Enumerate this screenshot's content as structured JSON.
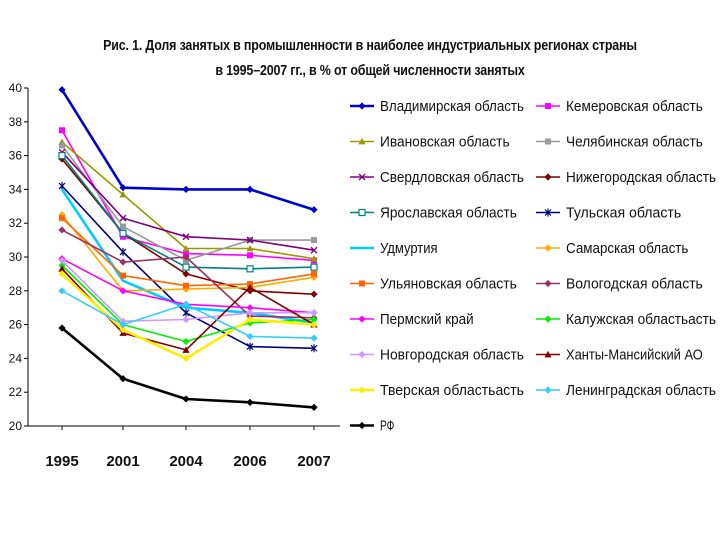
{
  "title_line1": "Рис. 1. Доля занятых в промышленности в наиболее индустриальных регионах страны",
  "title_line2": "в 1995–2007 гг., в % от общей численности занятых",
  "chart_data": {
    "type": "line",
    "title": "Рис. 1. Доля занятых в промышленности в наиболее индустриальных регионах страны в 1995–2007 гг., в % от общей численности занятых",
    "xlabel": "",
    "ylabel": "",
    "ylim": [
      20,
      40
    ],
    "yticks": [
      "20",
      "22",
      "24",
      "26",
      "28",
      "30",
      "32",
      "34",
      "36",
      "38",
      "40"
    ],
    "categories": [
      "1995",
      "2001",
      "2004",
      "2006",
      "2007"
    ],
    "grid": false,
    "legend_position": "right",
    "series": [
      {
        "name": "Владимирская область",
        "color": "#0000cc",
        "marker": "diamond",
        "values": [
          39.9,
          34.1,
          34.0,
          34.0,
          32.8
        ]
      },
      {
        "name": "Кемеровская область",
        "color": "#ff00ff",
        "marker": "square",
        "values": [
          37.5,
          31.2,
          30.2,
          30.1,
          29.8
        ]
      },
      {
        "name": "Ивановская область",
        "color": "#999900",
        "marker": "triangle",
        "values": [
          36.8,
          33.7,
          30.5,
          30.5,
          29.9
        ]
      },
      {
        "name": "Челябинская область",
        "color": "#999999",
        "marker": "square",
        "values": [
          36.6,
          31.8,
          29.8,
          31.0,
          31.0
        ]
      },
      {
        "name": "Свердловская область",
        "color": "#800080",
        "marker": "x",
        "values": [
          36.2,
          32.3,
          31.2,
          31.0,
          30.4
        ]
      },
      {
        "name": "Нижегородская область",
        "color": "#800000",
        "marker": "diamond",
        "values": [
          35.8,
          31.4,
          29.0,
          28.0,
          27.8
        ]
      },
      {
        "name": "Ярославская область",
        "color": "#008080",
        "marker": "square-open",
        "values": [
          36.0,
          31.4,
          29.4,
          29.3,
          29.4
        ]
      },
      {
        "name": "Тульская область",
        "color": "#000080",
        "marker": "star",
        "values": [
          34.2,
          30.3,
          26.7,
          24.7,
          24.6
        ]
      },
      {
        "name": "Удмуртия",
        "color": "#00ccff",
        "marker": "none",
        "values": [
          34.0,
          28.6,
          27.0,
          26.7,
          26.1
        ]
      },
      {
        "name": "Самарская область",
        "color": "#ffaa00",
        "marker": "diamond",
        "values": [
          32.5,
          28.0,
          28.1,
          28.2,
          28.8
        ]
      },
      {
        "name": "Ульяновская область",
        "color": "#ff6600",
        "marker": "square",
        "values": [
          32.3,
          28.9,
          28.3,
          28.4,
          29.0
        ]
      },
      {
        "name": "Вологодская область",
        "color": "#993366",
        "marker": "diamond",
        "values": [
          31.6,
          29.7,
          30.0,
          26.5,
          26.4
        ]
      },
      {
        "name": "Пермский край",
        "color": "#ff00ff",
        "marker": "diamond",
        "values": [
          29.9,
          28.0,
          27.2,
          27.0,
          26.7
        ]
      },
      {
        "name": "Калужская областьасть",
        "color": "#00ee00",
        "marker": "diamond",
        "values": [
          29.5,
          26.0,
          25.0,
          26.1,
          26.3
        ]
      },
      {
        "name": "Новгородская область",
        "color": "#cc99ff",
        "marker": "diamond",
        "values": [
          29.8,
          26.2,
          26.3,
          26.7,
          26.7
        ]
      },
      {
        "name": "Ханты-Мансийский АО",
        "color": "#800000",
        "marker": "triangle",
        "values": [
          29.3,
          25.5,
          24.5,
          28.2,
          26.0
        ]
      },
      {
        "name": "Тверская областьасть",
        "color": "#ffee00",
        "marker": "diamond",
        "values": [
          29.0,
          25.7,
          24.0,
          26.3,
          26.0
        ]
      },
      {
        "name": "Ленинградская область",
        "color": "#33ccff",
        "marker": "diamond",
        "values": [
          28.0,
          26.0,
          27.2,
          25.3,
          25.2
        ]
      },
      {
        "name": "РФ",
        "color": "#000000",
        "marker": "diamond",
        "values": [
          25.8,
          22.8,
          21.6,
          21.4,
          21.1
        ]
      }
    ]
  }
}
